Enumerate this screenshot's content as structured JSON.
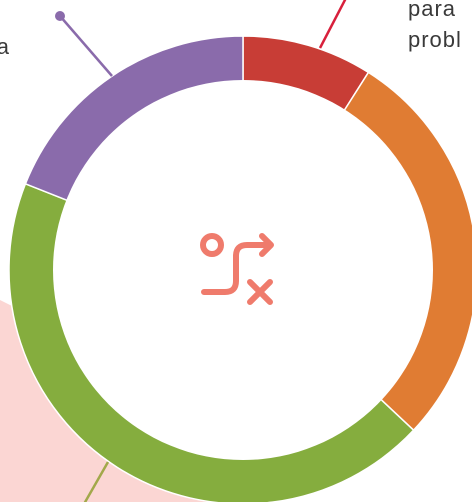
{
  "chart_data": {
    "type": "donut",
    "values": [
      9,
      28,
      44,
      19
    ],
    "colors": [
      "#c83d36",
      "#e07c33",
      "#85ad3e",
      "#8a6bab"
    ],
    "annotations": [
      "a",
      "para",
      "probl"
    ]
  }
}
